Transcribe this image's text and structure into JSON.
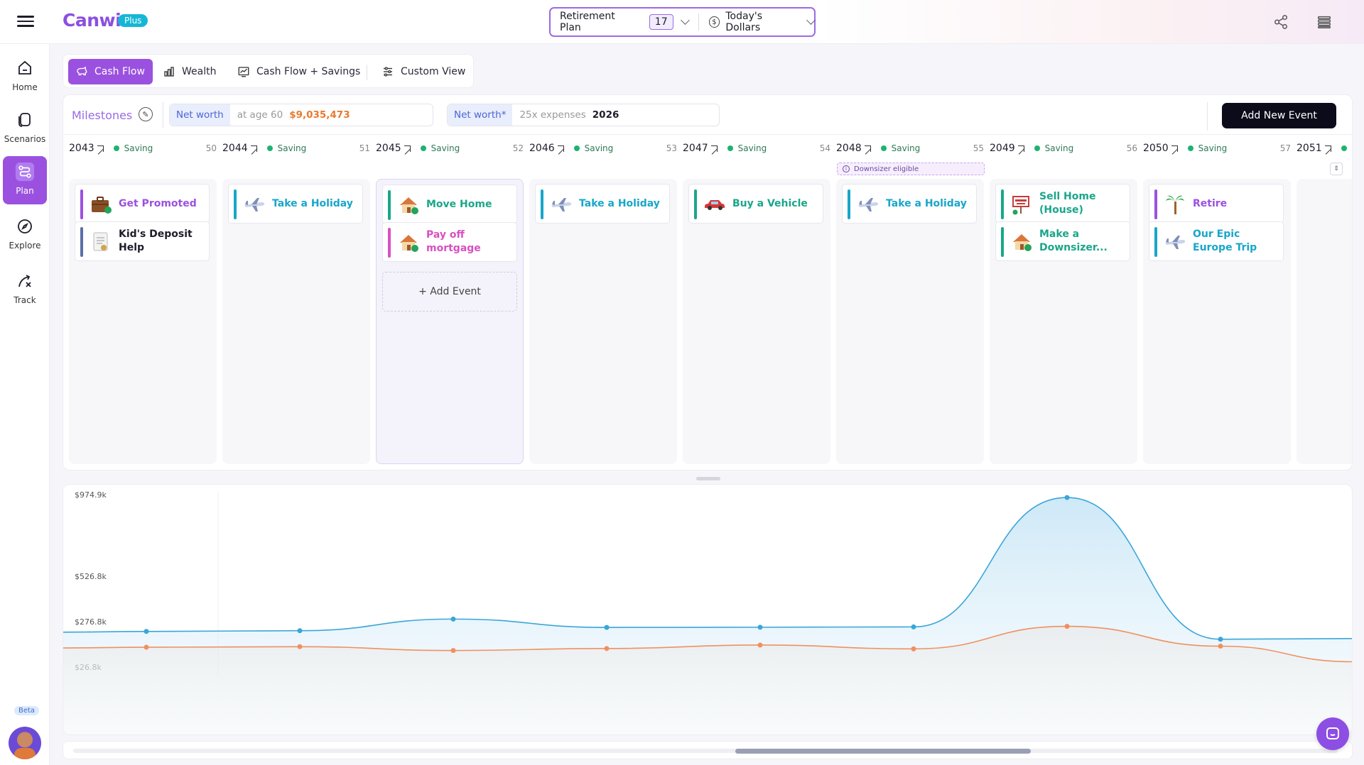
{
  "header": {
    "app_name": "Canwi",
    "plan_badge": "Plus",
    "plan_name": "Retirement Plan",
    "plan_number": "17",
    "dollar_mode": "Today's Dollars"
  },
  "nav": {
    "items": [
      {
        "label": "Home",
        "icon": "home-icon"
      },
      {
        "label": "Scenarios",
        "icon": "scenarios-icon"
      },
      {
        "label": "Plan",
        "icon": "plan-icon",
        "active": true
      },
      {
        "label": "Explore",
        "icon": "compass-icon"
      },
      {
        "label": "Track",
        "icon": "track-icon"
      }
    ],
    "beta": "Beta"
  },
  "tabs": [
    {
      "label": "Cash Flow",
      "active": true
    },
    {
      "label": "Wealth"
    },
    {
      "label": "Cash Flow + Savings"
    },
    {
      "label": "Custom View"
    }
  ],
  "milestones": {
    "label": "Milestones",
    "net_worth_1": {
      "tag": "Net worth",
      "sub": "at age 60",
      "value": "$9,035,473"
    },
    "net_worth_2": {
      "tag": "Net worth*",
      "sub": "25x expenses",
      "value": "2026"
    },
    "add_button": "Add New Event"
  },
  "years": [
    {
      "age": "",
      "year": "2043",
      "status": "Saving"
    },
    {
      "age": "50",
      "year": "2044",
      "status": "Saving"
    },
    {
      "age": "51",
      "year": "2045",
      "status": "Saving"
    },
    {
      "age": "52",
      "year": "2046",
      "status": "Saving"
    },
    {
      "age": "53",
      "year": "2047",
      "status": "Saving"
    },
    {
      "age": "54",
      "year": "2048",
      "status": "Saving"
    },
    {
      "age": "55",
      "year": "2049",
      "status": "Saving"
    },
    {
      "age": "56",
      "year": "2050",
      "status": "Saving"
    },
    {
      "age": "57",
      "year": "2051",
      "status": ""
    }
  ],
  "downsizer_tag": "Downsizer eligible",
  "columns": [
    {
      "events": [
        {
          "label": "Get Promoted",
          "color": "#9b51e0",
          "icon": "briefcase-icon"
        },
        {
          "label": "Kid's Deposit Help",
          "color": "#5b6ea8",
          "icon": "document-icon",
          "text_color": "#1d1d2b"
        }
      ]
    },
    {
      "events": [
        {
          "label": "Take a Holiday",
          "color": "#18a6c9",
          "icon": "airplane-icon"
        }
      ]
    },
    {
      "events": [
        {
          "label": "Move Home",
          "color": "#1aa68a",
          "icon": "house-icon"
        },
        {
          "label": "Pay off mortgage",
          "color": "#d94fc1",
          "icon": "house-icon"
        }
      ],
      "add_event": "+ Add Event"
    },
    {
      "events": [
        {
          "label": "Take a Holiday",
          "color": "#18a6c9",
          "icon": "airplane-icon"
        }
      ]
    },
    {
      "events": [
        {
          "label": "Buy a Vehicle",
          "color": "#1aa68a",
          "icon": "car-icon"
        }
      ]
    },
    {
      "events": [
        {
          "label": "Take a Holiday",
          "color": "#18a6c9",
          "icon": "airplane-icon"
        }
      ]
    },
    {
      "events": [
        {
          "label": "Sell Home (House)",
          "color": "#1aa68a",
          "icon": "for-sale-icon"
        },
        {
          "label": "Make a Downsizer...",
          "color": "#1aa68a",
          "icon": "house-icon"
        }
      ]
    },
    {
      "events": [
        {
          "label": "Retire",
          "color": "#9b51e0",
          "icon": "palm-tree-icon"
        },
        {
          "label": "Our Epic Europe Trip",
          "color": "#18a6c9",
          "icon": "airplane-icon"
        }
      ]
    },
    {
      "events": []
    }
  ],
  "chart_data": {
    "type": "area",
    "ytick_labels": [
      "$974.9k",
      "$526.8k",
      "$276.8k",
      "$26.8k"
    ],
    "ytick_values": [
      974900,
      526800,
      276800,
      26800
    ],
    "ylim": [
      26800,
      974900
    ],
    "x": [
      "2043",
      "2044",
      "2045",
      "2046",
      "2047",
      "2048",
      "2049",
      "2050"
    ],
    "series": [
      {
        "color": "#3aa6d8",
        "values": [
          223000,
          227000,
          291000,
          245000,
          246000,
          248000,
          959000,
          180000
        ]
      },
      {
        "color": "#f09060",
        "values": [
          136000,
          139000,
          118000,
          129000,
          148000,
          127000,
          251000,
          142000
        ]
      }
    ]
  },
  "chat_icon": "chat-icon"
}
